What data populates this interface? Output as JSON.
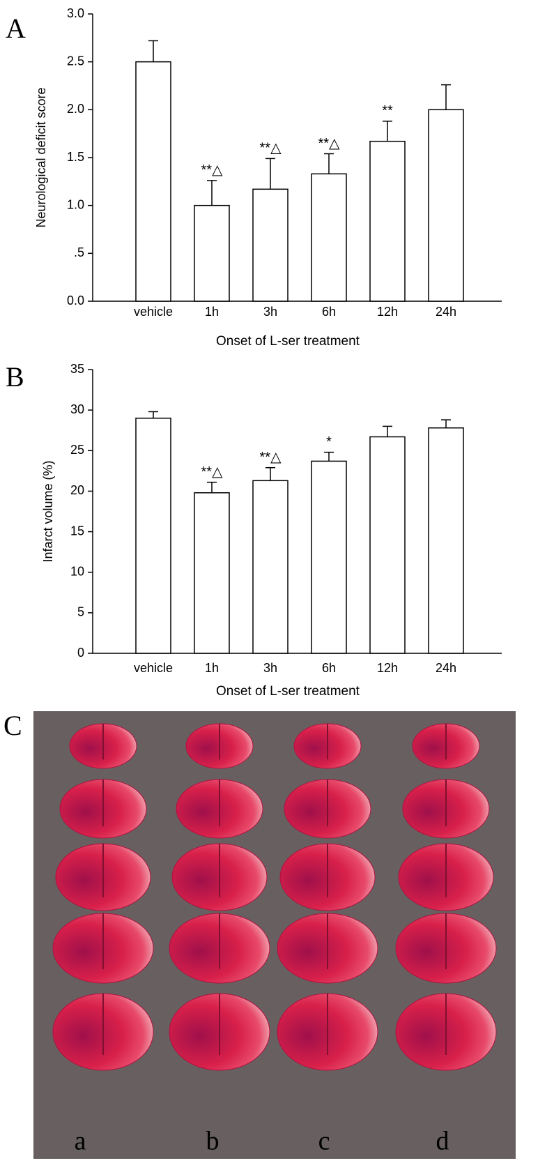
{
  "chart_data": [
    {
      "type": "bar",
      "panel_label": "A",
      "ylabel": "Neurological deficit score",
      "xlabel": "Onset of L-ser treatment",
      "categories": [
        "vehicle",
        "1h",
        "3h",
        "6h",
        "12h",
        "24h"
      ],
      "values": [
        2.5,
        1.0,
        1.17,
        1.33,
        1.67,
        2.0
      ],
      "errors": [
        0.22,
        0.26,
        0.32,
        0.21,
        0.21,
        0.26
      ],
      "annotations": [
        null,
        "**△",
        "**△",
        "**△",
        "**",
        null
      ],
      "color": "#ffffff",
      "ylim": [
        0,
        3
      ],
      "yticks": [
        {
          "value": 0,
          "label": "0.0"
        },
        {
          "value": 0.5,
          "label": ".5"
        },
        {
          "value": 1,
          "label": "1.0"
        },
        1.5,
        {
          "value": 2,
          "label": "2.0"
        },
        2.5,
        {
          "value": 3,
          "label": "3.0"
        }
      ]
    },
    {
      "type": "bar",
      "panel_label": "B",
      "ylabel": "Infarct volume (%)",
      "xlabel": "Onset of L-ser treatment",
      "categories": [
        "vehicle",
        "1h",
        "3h",
        "6h",
        "12h",
        "24h"
      ],
      "values": [
        29.0,
        19.8,
        21.3,
        23.7,
        26.7,
        27.8
      ],
      "errors": [
        0.8,
        1.3,
        1.6,
        1.1,
        1.3,
        1.0
      ],
      "annotations": [
        null,
        "**△",
        "**△",
        "*",
        null,
        null
      ],
      "color": "#ffffff",
      "ylim": [
        0,
        35
      ],
      "yticks": [
        0,
        5,
        10,
        15,
        20,
        25,
        30,
        35
      ]
    }
  ],
  "panel_c": {
    "label": "C",
    "columns": [
      "a",
      "b",
      "c",
      "d"
    ]
  }
}
